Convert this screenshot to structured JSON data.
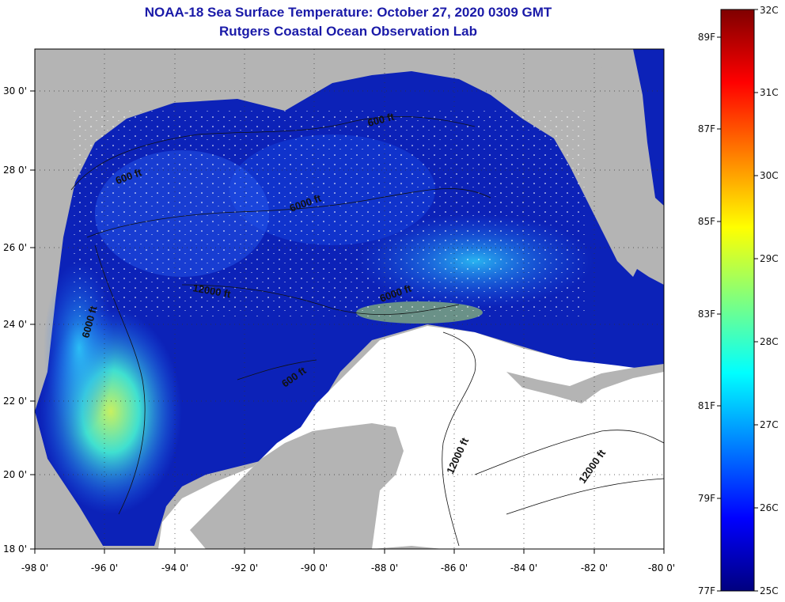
{
  "title": {
    "line1": "NOAA-18 Sea Surface Temperature:  October 27, 2020 0309 GMT",
    "line2": "Rutgers Coastal Ocean Observation Lab"
  },
  "map": {
    "lon_range": [
      -98,
      -80
    ],
    "lat_range": [
      18,
      31
    ],
    "lon_ticks": [
      "-98 0'",
      "-96 0'",
      "-94 0'",
      "-92 0'",
      "-90 0'",
      "-88 0'",
      "-86 0'",
      "-84 0'",
      "-82 0'",
      "-80 0'"
    ],
    "lat_ticks": [
      "18 0'",
      "20 0'",
      "22 0'",
      "24 0'",
      "26 0'",
      "28 0'",
      "30 0'"
    ],
    "contour_labels": [
      {
        "text": "600 ft"
      },
      {
        "text": "600 ft"
      },
      {
        "text": "6000 ft"
      },
      {
        "text": "12000 ft"
      },
      {
        "text": "6000 ft"
      },
      {
        "text": "6000 ft"
      },
      {
        "text": "600 ft"
      },
      {
        "text": "12000 ft"
      },
      {
        "text": "12000 ft"
      }
    ],
    "colors": {
      "land": "#b4b4b4",
      "cloud": "#ffffff",
      "water_deep": "#0a1fb4",
      "water_warm": "#26c8ff"
    }
  },
  "colorbar": {
    "celsius": [
      "32C",
      "31C",
      "30C",
      "29C",
      "28C",
      "27C",
      "26C",
      "25C"
    ],
    "fahrenheit": [
      "89F",
      "87F",
      "85F",
      "83F",
      "81F",
      "79F",
      "77F"
    ],
    "range_c": [
      25,
      32
    ],
    "scale_colors": [
      "#00007f",
      "#0000ff",
      "#007fff",
      "#00ffff",
      "#7fff7f",
      "#ffff00",
      "#ff7f00",
      "#ff0000",
      "#7f0000"
    ]
  }
}
